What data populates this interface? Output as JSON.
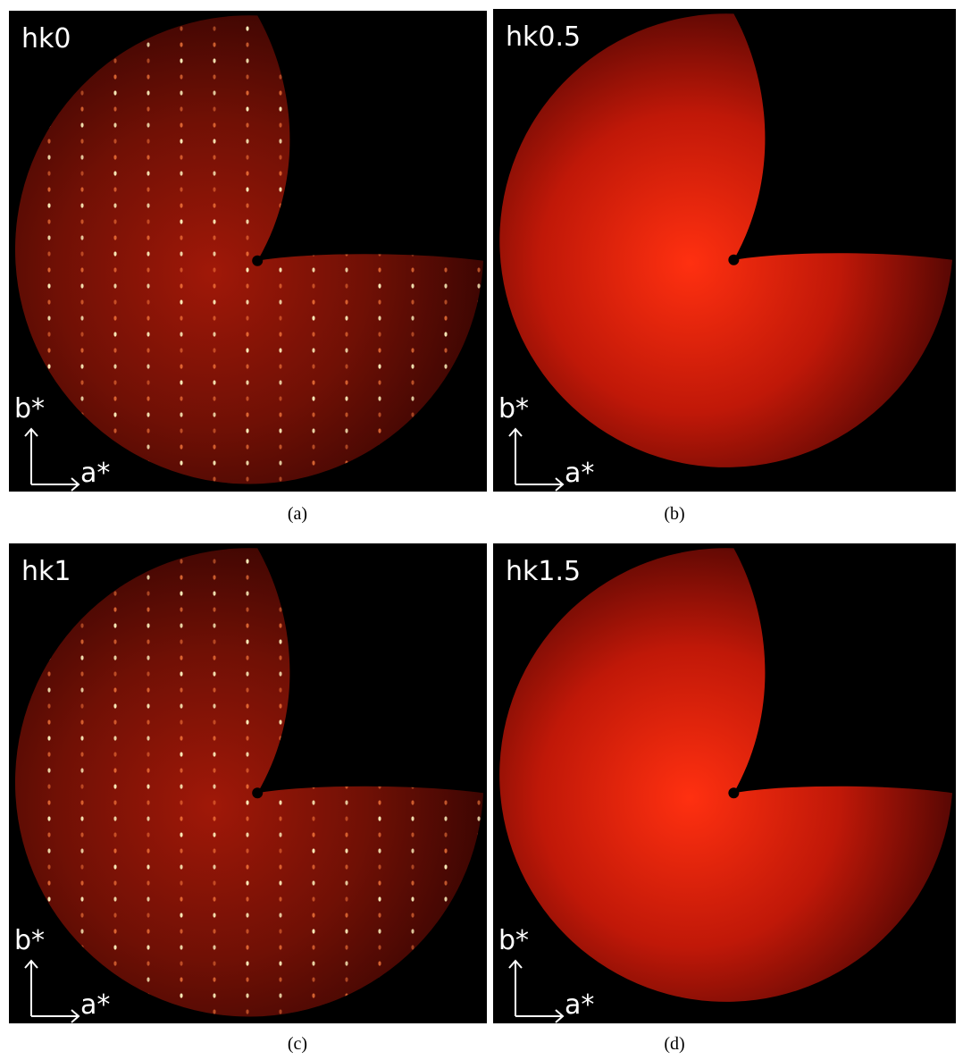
{
  "panels": [
    {
      "label": "hk0",
      "caption": "(a)",
      "b_axis": "b*",
      "a_axis": "a*",
      "spots": true
    },
    {
      "label": "hk0.5",
      "caption": "(b)",
      "b_axis": "b*",
      "a_axis": "a*",
      "spots": false
    },
    {
      "label": "hk1",
      "caption": "(c)",
      "b_axis": "b*",
      "a_axis": "a*",
      "spots": true
    },
    {
      "label": "hk1.5",
      "caption": "(d)",
      "b_axis": "b*",
      "a_axis": "a*",
      "spots": false
    }
  ]
}
